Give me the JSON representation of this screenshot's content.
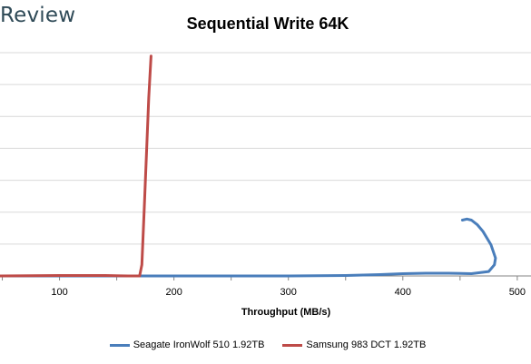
{
  "brand": {
    "logo_text": "Review"
  },
  "chart_data": {
    "type": "line",
    "title": "Sequential Write 64K",
    "xlabel": "Throughput (MB/s)",
    "ylabel": "",
    "xlim": [
      48,
      512
    ],
    "ylim": [
      0,
      1
    ],
    "x_ticks": [
      100,
      200,
      300,
      400,
      500
    ],
    "grid": "horizontal",
    "legend_position": "bottom",
    "series": [
      {
        "name": "Seagate IronWolf 510 1.92TB",
        "color": "#4a7ebb",
        "points": [
          [
            48,
            0.0
          ],
          [
            100,
            0.0
          ],
          [
            200,
            0.0
          ],
          [
            300,
            0.0
          ],
          [
            350,
            0.002
          ],
          [
            380,
            0.006
          ],
          [
            400,
            0.01
          ],
          [
            420,
            0.012
          ],
          [
            440,
            0.012
          ],
          [
            460,
            0.01
          ],
          [
            475,
            0.02
          ],
          [
            480,
            0.05
          ],
          [
            481,
            0.08
          ],
          [
            477,
            0.14
          ],
          [
            470,
            0.2
          ],
          [
            465,
            0.23
          ],
          [
            460,
            0.25
          ],
          [
            456,
            0.255
          ],
          [
            452,
            0.25
          ]
        ]
      },
      {
        "name": "Samsung 983 DCT 1.92TB",
        "color": "#be4b48",
        "points": [
          [
            48,
            0.0
          ],
          [
            100,
            0.002
          ],
          [
            140,
            0.002
          ],
          [
            160,
            0.0
          ],
          [
            170,
            0.0
          ],
          [
            172,
            0.05
          ],
          [
            174,
            0.3
          ],
          [
            176,
            0.55
          ],
          [
            178,
            0.8
          ],
          [
            180,
            0.985
          ]
        ]
      }
    ]
  }
}
